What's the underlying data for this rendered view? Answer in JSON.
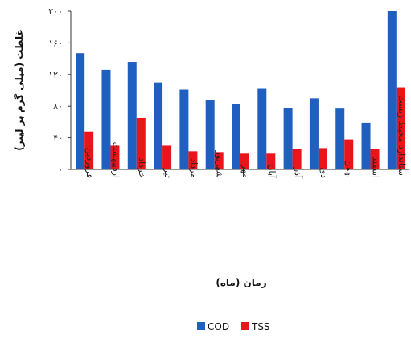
{
  "chart_data": {
    "type": "bar",
    "categories": [
      "فروردین",
      "اردیبهشت",
      "خرداد",
      "تیر",
      "مرداد",
      "شهریور",
      "مهر",
      "آبان",
      "آذر",
      "دی",
      "بهمن",
      "اسفند",
      "استاندارد محیط زیست"
    ],
    "series": [
      {
        "name": "COD",
        "values": [
          147,
          126,
          136,
          110,
          101,
          88,
          83,
          102,
          78,
          90,
          77,
          59,
          200
        ],
        "color": "#1f5fbf"
      },
      {
        "name": "TSS",
        "values": [
          48,
          30,
          65,
          30,
          23,
          22,
          20,
          20,
          26,
          27,
          38,
          26,
          104
        ],
        "color": "#e8151b"
      }
    ],
    "xlabel": "زمان (ماه)",
    "ylabel": "غلظت (میلی گرم بر لیتر)",
    "yticks": [
      "۰",
      "۴۰",
      "۸۰",
      "۱۲۰",
      "۱۶۰",
      "۲۰۰"
    ],
    "ylim": [
      0,
      200
    ],
    "legend_position": "bottom",
    "grid": false
  }
}
